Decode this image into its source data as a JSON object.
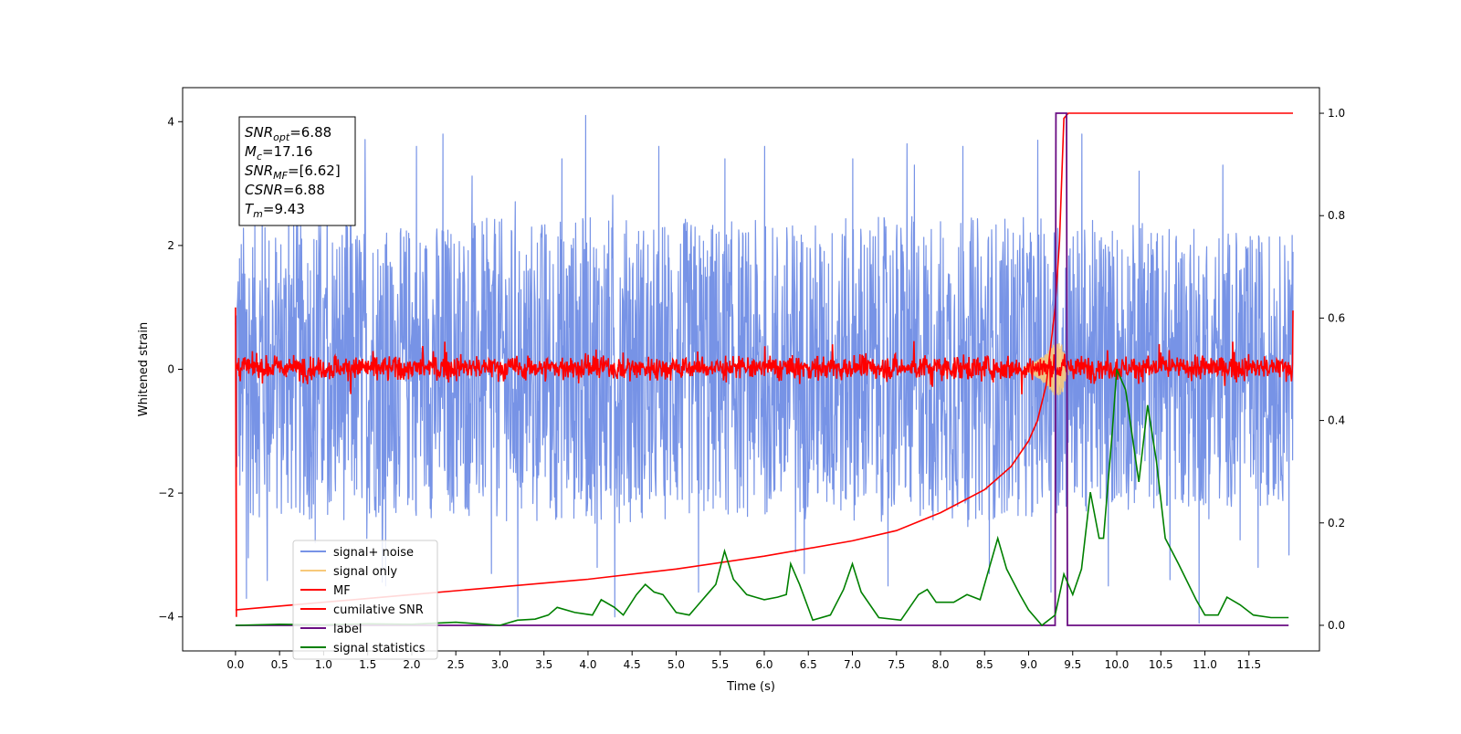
{
  "chart_data": {
    "type": "line",
    "xlabel": "Time (s)",
    "ylabel": "Whitened strain",
    "xlim": [
      -0.6,
      12.3
    ],
    "ylim": [
      -4.55,
      4.55
    ],
    "y2lim": [
      -0.05,
      1.05
    ],
    "x_ticks": [
      "0.0",
      "0.5",
      "1.0",
      "1.5",
      "2.0",
      "2.5",
      "3.0",
      "3.5",
      "4.0",
      "4.5",
      "5.0",
      "5.5",
      "6.0",
      "6.5",
      "7.0",
      "7.5",
      "8.0",
      "8.5",
      "9.0",
      "9.5",
      "10.0",
      "10.5",
      "11.0",
      "11.5"
    ],
    "y_ticks": [
      "4",
      "2",
      "0",
      "−2",
      "−4"
    ],
    "y2_ticks": [
      "1.0",
      "0.8",
      "0.6",
      "0.4",
      "0.2",
      "0.0"
    ],
    "annotation": {
      "lines": [
        {
          "sym": "SNR",
          "sub": "opt",
          "text": "=6.88"
        },
        {
          "sym": "M",
          "sub": "c",
          "text": "=17.16"
        },
        {
          "sym": "SNR",
          "sub": "MF",
          "text": "=[6.62]"
        },
        {
          "sym": "CSNR",
          "sub": "",
          "text": "=6.88"
        },
        {
          "sym": "T",
          "sub": "m",
          "text": "=9.43"
        }
      ]
    },
    "legend": {
      "location": "lower left",
      "entries": [
        {
          "label": "signal+ noise",
          "color": "#7793e6"
        },
        {
          "label": "signal only",
          "color": "#f7c97a"
        },
        {
          "label": "MF",
          "color": "#ff0000"
        },
        {
          "label": "cumilative SNR",
          "color": "#ff0000"
        },
        {
          "label": "label",
          "color": "#6a0d83"
        },
        {
          "label": "signal statistics",
          "color": "#008000"
        }
      ]
    },
    "series": [
      {
        "name": "signal+ noise",
        "axis": "left",
        "color": "#7793e6",
        "note": "noisy strain band centred on ~0",
        "t_range": [
          0.0,
          12.0
        ],
        "envelope_upper": [
          [
            0.0,
            2.4
          ],
          [
            1.0,
            2.5
          ],
          [
            2.0,
            2.4
          ],
          [
            4.0,
            2.5
          ],
          [
            6.0,
            2.4
          ],
          [
            8.0,
            2.5
          ],
          [
            10.0,
            2.4
          ],
          [
            12.0,
            2.2
          ]
        ],
        "envelope_lower": [
          [
            0.0,
            -2.4
          ],
          [
            1.0,
            -2.5
          ],
          [
            2.0,
            -2.4
          ],
          [
            4.0,
            -2.5
          ],
          [
            6.0,
            -2.4
          ],
          [
            8.0,
            -2.5
          ],
          [
            10.0,
            -2.3
          ],
          [
            12.0,
            -2.2
          ]
        ],
        "peaks": [
          [
            0.12,
            -3.7
          ],
          [
            0.3,
            2.9
          ],
          [
            0.6,
            3.0
          ],
          [
            0.9,
            -2.8
          ],
          [
            1.3,
            3.0
          ],
          [
            1.7,
            -3.5
          ],
          [
            2.05,
            3.6
          ],
          [
            2.35,
            3.8
          ],
          [
            2.9,
            -3.3
          ],
          [
            3.2,
            -4.0
          ],
          [
            3.7,
            3.4
          ],
          [
            3.97,
            4.1
          ],
          [
            4.1,
            -3.2
          ],
          [
            4.3,
            -4.0
          ],
          [
            4.8,
            3.6
          ],
          [
            5.25,
            -3.6
          ],
          [
            5.55,
            3.4
          ],
          [
            6.0,
            3.6
          ],
          [
            6.45,
            -3.3
          ],
          [
            7.0,
            3.4
          ],
          [
            7.4,
            -3.5
          ],
          [
            7.7,
            3.3
          ],
          [
            8.25,
            3.6
          ],
          [
            8.55,
            -3.3
          ],
          [
            9.1,
            3.7
          ],
          [
            9.25,
            -3.6
          ],
          [
            9.6,
            3.8
          ],
          [
            9.9,
            -3.5
          ],
          [
            10.25,
            3.2
          ],
          [
            10.6,
            -3.4
          ],
          [
            10.93,
            -4.1
          ],
          [
            11.2,
            3.3
          ],
          [
            11.6,
            -3.2
          ],
          [
            11.95,
            -3.0
          ]
        ]
      },
      {
        "name": "signal only",
        "axis": "left",
        "color": "#f7c97a",
        "note": "chirp growing toward ~9.4 s",
        "points": [
          [
            9.0,
            0.05
          ],
          [
            9.1,
            0.15
          ],
          [
            9.2,
            0.25
          ],
          [
            9.3,
            0.45
          ],
          [
            9.38,
            0.4
          ],
          [
            9.43,
            0.1
          ]
        ]
      },
      {
        "name": "MF",
        "axis": "left",
        "color": "#ff0000",
        "note": "matched filter output band ~[-0.25,0.3]",
        "t_range": [
          0.0,
          12.0
        ],
        "band": [
          -0.25,
          0.3
        ],
        "spikes": [
          [
            0.0,
            1.0
          ],
          [
            0.01,
            -4.0
          ],
          [
            12.0,
            0.95
          ]
        ]
      },
      {
        "name": "cumilative SNR",
        "axis": "right",
        "color": "#ff0000",
        "points": [
          [
            0.0,
            0.03
          ],
          [
            1.0,
            0.045
          ],
          [
            2.0,
            0.06
          ],
          [
            3.0,
            0.075
          ],
          [
            4.0,
            0.09
          ],
          [
            5.0,
            0.11
          ],
          [
            6.0,
            0.135
          ],
          [
            7.0,
            0.165
          ],
          [
            7.5,
            0.185
          ],
          [
            8.0,
            0.22
          ],
          [
            8.5,
            0.265
          ],
          [
            8.8,
            0.31
          ],
          [
            9.0,
            0.36
          ],
          [
            9.1,
            0.4
          ],
          [
            9.2,
            0.47
          ],
          [
            9.3,
            0.62
          ],
          [
            9.35,
            0.75
          ],
          [
            9.4,
            0.99
          ],
          [
            9.45,
            1.0
          ],
          [
            12.0,
            1.0
          ]
        ]
      },
      {
        "name": "label",
        "axis": "right",
        "color": "#6a0d83",
        "points": [
          [
            0.0,
            0.0
          ],
          [
            9.3,
            0.0
          ],
          [
            9.31,
            1.0
          ],
          [
            9.43,
            1.0
          ],
          [
            9.44,
            0.0
          ],
          [
            11.95,
            0.0
          ]
        ]
      },
      {
        "name": "signal statistics",
        "axis": "right",
        "color": "#008000",
        "points": [
          [
            0.0,
            0.0
          ],
          [
            0.5,
            0.002
          ],
          [
            1.0,
            0.001
          ],
          [
            1.5,
            0.003
          ],
          [
            2.0,
            0.002
          ],
          [
            2.5,
            0.006
          ],
          [
            3.0,
            0.0
          ],
          [
            3.2,
            0.01
          ],
          [
            3.4,
            0.012
          ],
          [
            3.55,
            0.02
          ],
          [
            3.65,
            0.035
          ],
          [
            3.85,
            0.025
          ],
          [
            4.05,
            0.02
          ],
          [
            4.15,
            0.05
          ],
          [
            4.3,
            0.035
          ],
          [
            4.4,
            0.02
          ],
          [
            4.55,
            0.06
          ],
          [
            4.65,
            0.08
          ],
          [
            4.75,
            0.065
          ],
          [
            4.85,
            0.06
          ],
          [
            5.0,
            0.025
          ],
          [
            5.15,
            0.02
          ],
          [
            5.35,
            0.06
          ],
          [
            5.45,
            0.08
          ],
          [
            5.55,
            0.145
          ],
          [
            5.65,
            0.09
          ],
          [
            5.8,
            0.06
          ],
          [
            5.9,
            0.055
          ],
          [
            6.0,
            0.05
          ],
          [
            6.15,
            0.055
          ],
          [
            6.25,
            0.06
          ],
          [
            6.3,
            0.12
          ],
          [
            6.4,
            0.08
          ],
          [
            6.55,
            0.01
          ],
          [
            6.75,
            0.02
          ],
          [
            6.9,
            0.07
          ],
          [
            7.0,
            0.12
          ],
          [
            7.1,
            0.065
          ],
          [
            7.3,
            0.015
          ],
          [
            7.55,
            0.01
          ],
          [
            7.75,
            0.06
          ],
          [
            7.85,
            0.07
          ],
          [
            7.95,
            0.045
          ],
          [
            8.15,
            0.045
          ],
          [
            8.3,
            0.06
          ],
          [
            8.45,
            0.05
          ],
          [
            8.65,
            0.17
          ],
          [
            8.75,
            0.11
          ],
          [
            8.9,
            0.06
          ],
          [
            9.0,
            0.03
          ],
          [
            9.15,
            0.0
          ],
          [
            9.3,
            0.02
          ],
          [
            9.4,
            0.1
          ],
          [
            9.5,
            0.06
          ],
          [
            9.6,
            0.11
          ],
          [
            9.7,
            0.26
          ],
          [
            9.8,
            0.17
          ],
          [
            9.85,
            0.17
          ],
          [
            9.95,
            0.38
          ],
          [
            10.0,
            0.5
          ],
          [
            10.1,
            0.46
          ],
          [
            10.25,
            0.28
          ],
          [
            10.35,
            0.43
          ],
          [
            10.45,
            0.32
          ],
          [
            10.55,
            0.17
          ],
          [
            10.7,
            0.12
          ],
          [
            10.9,
            0.05
          ],
          [
            11.0,
            0.02
          ],
          [
            11.15,
            0.02
          ],
          [
            11.25,
            0.055
          ],
          [
            11.4,
            0.04
          ],
          [
            11.55,
            0.02
          ],
          [
            11.75,
            0.015
          ],
          [
            11.95,
            0.015
          ]
        ]
      }
    ]
  }
}
